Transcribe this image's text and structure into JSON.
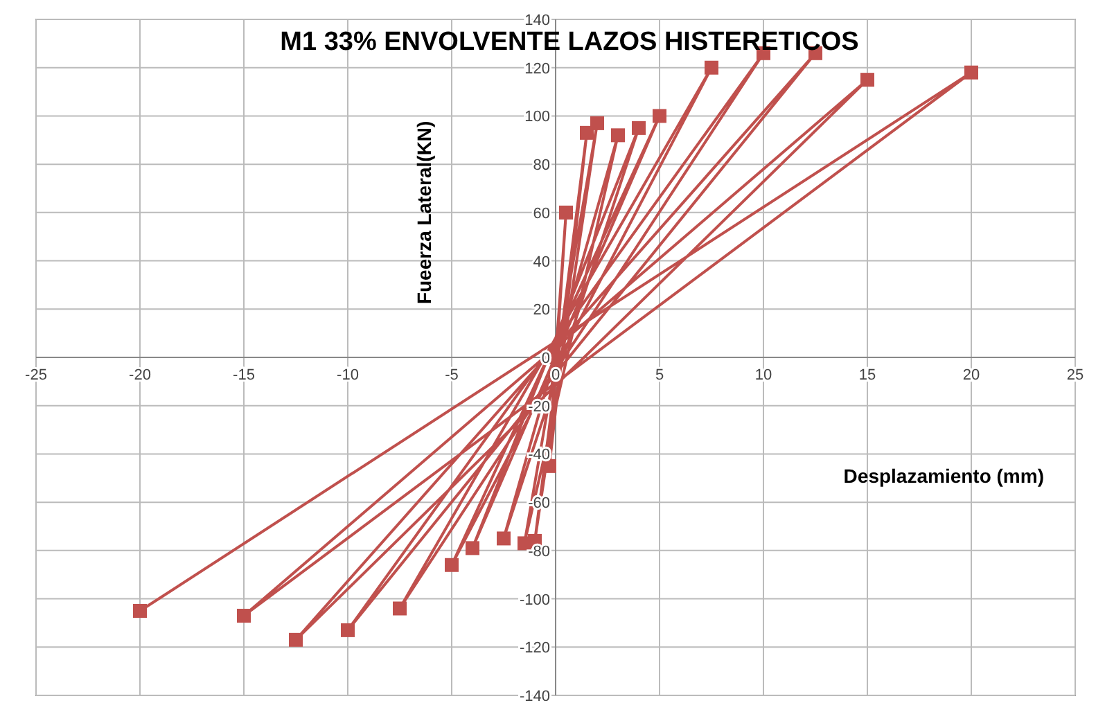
{
  "chart_data": {
    "type": "line",
    "title": "M1 33% ENVOLVENTE LAZOS HISTERETICOS",
    "xlabel": "Desplazamiento (mm)",
    "ylabel": "Fueerza Lateral(KN)",
    "series": [
      {
        "color": "#c0504d",
        "x": [
          0,
          0.5,
          -0.3,
          1.5,
          -1,
          2,
          -1.5,
          3,
          -2.5,
          4,
          -4,
          5,
          -5,
          7.5,
          -7.5,
          10,
          -10,
          12.5,
          -12.5,
          15,
          -15,
          20,
          -20
        ],
        "values": [
          0,
          60,
          -45,
          93,
          -76,
          97,
          -77,
          92,
          -75,
          95,
          -79,
          100,
          -86,
          120,
          -104,
          126,
          -113,
          126,
          -117,
          115,
          -107,
          118,
          -105
        ]
      }
    ],
    "xlim": [
      -25,
      25
    ],
    "ylim": [
      -140,
      140
    ],
    "xticks": [
      -25,
      -20,
      -15,
      -10,
      -5,
      0,
      5,
      10,
      15,
      20,
      25
    ],
    "yticks": [
      -140,
      -120,
      -100,
      -80,
      -60,
      -40,
      -20,
      0,
      20,
      40,
      60,
      80,
      100,
      120,
      140
    ],
    "grid": true,
    "marker": "square",
    "line_style": "solid"
  }
}
